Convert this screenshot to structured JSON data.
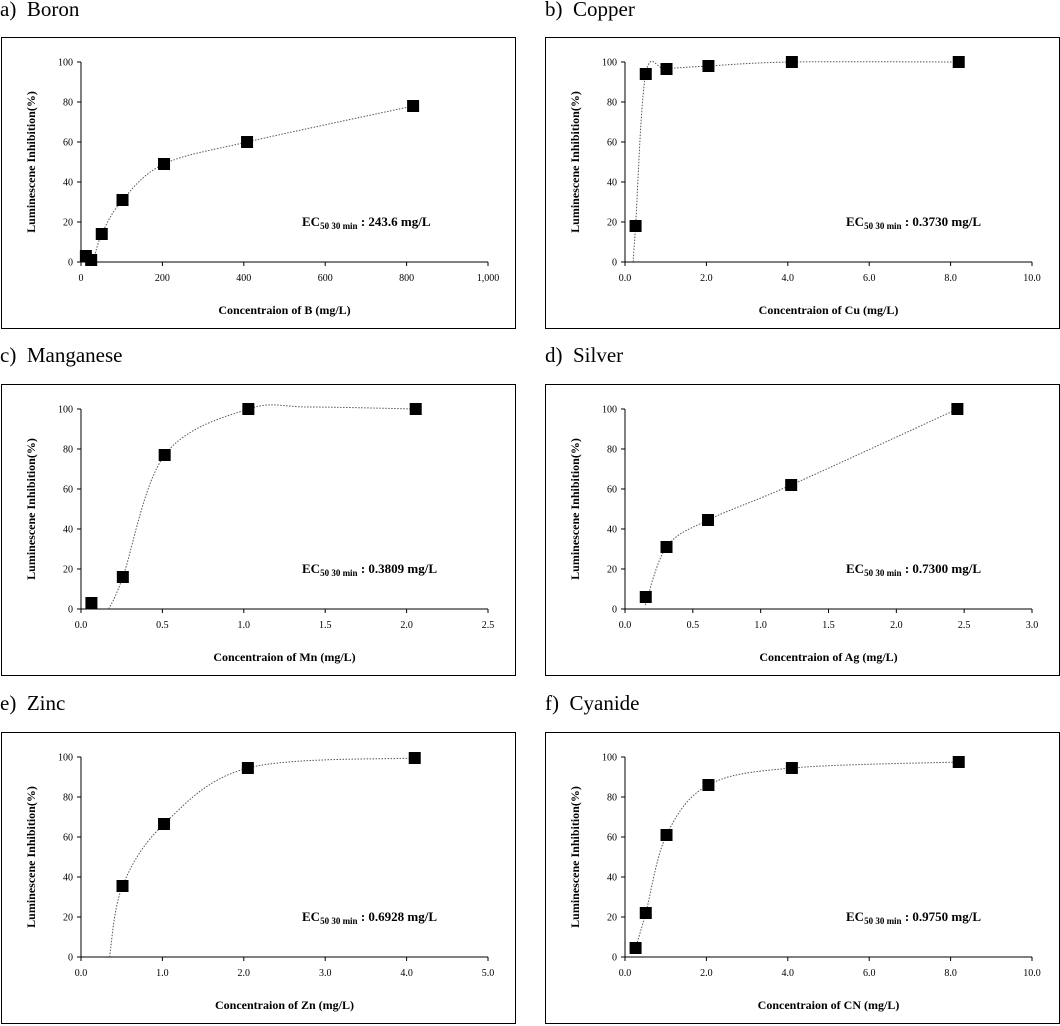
{
  "chart_data": [
    {
      "type": "scatter",
      "panel": "a)",
      "title": "Boron",
      "xlabel": "Concentraion of B (mg/L)",
      "ylabel": "Luminescene Inhibition(%)",
      "xlim": [
        0,
        1000
      ],
      "ylim": [
        0,
        100
      ],
      "xticks": [
        0,
        200,
        400,
        600,
        800,
        1000
      ],
      "xtick_labels": [
        "0",
        "200",
        "400",
        "600",
        "800",
        "1,000"
      ],
      "yticks": [
        0,
        20,
        40,
        60,
        80,
        100
      ],
      "ytick_labels": [
        "0",
        "20",
        "40",
        "60",
        "80",
        "100"
      ],
      "x": [
        12,
        25,
        51,
        102,
        204,
        408,
        816
      ],
      "y": [
        3,
        1,
        14,
        31,
        49,
        60,
        78
      ],
      "fit_curve": [
        [
          30,
          0
        ],
        [
          51,
          14
        ],
        [
          102,
          31
        ],
        [
          204,
          49
        ],
        [
          408,
          60
        ],
        [
          816,
          78
        ]
      ],
      "annotation": {
        "main": "EC",
        "sub": "50 30 min",
        "value": ": 243.6 mg/L"
      }
    },
    {
      "type": "scatter",
      "panel": "b)",
      "title": "Copper",
      "xlabel": "Concentraion of Cu (mg/L)",
      "ylabel": "Luminescene Inhibition(%)",
      "xlim": [
        0,
        10
      ],
      "ylim": [
        0,
        100
      ],
      "xticks": [
        0,
        2,
        4,
        6,
        8,
        10
      ],
      "xtick_labels": [
        "0.0",
        "2.0",
        "4.0",
        "6.0",
        "8.0",
        "10.0"
      ],
      "yticks": [
        0,
        20,
        40,
        60,
        80,
        100
      ],
      "ytick_labels": [
        "0",
        "20",
        "40",
        "60",
        "80",
        "100"
      ],
      "x": [
        0.26,
        0.51,
        1.02,
        2.05,
        4.1,
        8.2
      ],
      "y": [
        18,
        94,
        96.5,
        98,
        100,
        100
      ],
      "fit_curve": [
        [
          0.2,
          0
        ],
        [
          0.26,
          18
        ],
        [
          0.51,
          94
        ],
        [
          1.02,
          96.5
        ],
        [
          2.05,
          98
        ],
        [
          4.1,
          100
        ],
        [
          8.2,
          100
        ]
      ],
      "annotation": {
        "main": "EC",
        "sub": "50 30 min",
        "value": ": 0.3730 mg/L"
      }
    },
    {
      "type": "scatter",
      "panel": "c)",
      "title": "Manganese",
      "xlabel": "Concentraion of Mn (mg/L)",
      "ylabel": "Luminescene Inhibition(%)",
      "xlim": [
        0,
        2.5
      ],
      "ylim": [
        0,
        100
      ],
      "xticks": [
        0,
        0.5,
        1.0,
        1.5,
        2.0,
        2.5
      ],
      "xtick_labels": [
        "0.0",
        "0.5",
        "1.0",
        "1.5",
        "2.0",
        "2.5"
      ],
      "yticks": [
        0,
        20,
        40,
        60,
        80,
        100
      ],
      "ytick_labels": [
        "0",
        "20",
        "40",
        "60",
        "80",
        "100"
      ],
      "x": [
        0.064,
        0.257,
        0.514,
        1.028,
        2.056
      ],
      "y": [
        3,
        16,
        77,
        100,
        100
      ],
      "fit_curve": [
        [
          0.17,
          0
        ],
        [
          0.257,
          16
        ],
        [
          0.514,
          77
        ],
        [
          1.028,
          100
        ],
        [
          1.4,
          101
        ],
        [
          2.056,
          100
        ]
      ],
      "annotation": {
        "main": "EC",
        "sub": "50 30 min",
        "value": ": 0.3809 mg/L"
      }
    },
    {
      "type": "scatter",
      "panel": "d)",
      "title": "Silver",
      "xlabel": "Concentraion of Ag (mg/L)",
      "ylabel": "Luminescene Inhibition(%)",
      "xlim": [
        0,
        3.0
      ],
      "ylim": [
        0,
        100
      ],
      "xticks": [
        0,
        0.5,
        1.0,
        1.5,
        2.0,
        2.5,
        3.0
      ],
      "xtick_labels": [
        "0.0",
        "0.5",
        "1.0",
        "1.5",
        "2.0",
        "2.5",
        "3.0"
      ],
      "yticks": [
        0,
        20,
        40,
        60,
        80,
        100
      ],
      "ytick_labels": [
        "0",
        "20",
        "40",
        "60",
        "80",
        "100"
      ],
      "x": [
        0.153,
        0.306,
        0.612,
        1.225,
        2.45
      ],
      "y": [
        6,
        31,
        44.5,
        62,
        100
      ],
      "fit_curve": [
        [
          0.15,
          2
        ],
        [
          0.306,
          31
        ],
        [
          0.612,
          44.5
        ],
        [
          1.225,
          62
        ],
        [
          2.45,
          100
        ]
      ],
      "annotation": {
        "main": "EC",
        "sub": "50 30 min",
        "value": ": 0.7300 mg/L"
      }
    },
    {
      "type": "scatter",
      "panel": "e)",
      "title": "Zinc",
      "xlabel": "Concentraion of Zn (mg/L)",
      "ylabel": "Luminescene Inhibition(%)",
      "xlim": [
        0,
        5.0
      ],
      "ylim": [
        0,
        100
      ],
      "xticks": [
        0,
        1,
        2,
        3,
        4,
        5
      ],
      "xtick_labels": [
        "0.0",
        "1.0",
        "2.0",
        "3.0",
        "4.0",
        "5.0"
      ],
      "yticks": [
        0,
        20,
        40,
        60,
        80,
        100
      ],
      "ytick_labels": [
        "0",
        "20",
        "40",
        "60",
        "80",
        "100"
      ],
      "x": [
        0.51,
        1.02,
        2.05,
        4.1
      ],
      "y": [
        35.5,
        66.5,
        94.5,
        99.5
      ],
      "fit_curve": [
        [
          0.35,
          0
        ],
        [
          0.51,
          35.5
        ],
        [
          1.02,
          66.5
        ],
        [
          2.05,
          94.5
        ],
        [
          4.1,
          99.5
        ]
      ],
      "annotation": {
        "main": "EC",
        "sub": "50 30 min",
        "value": ": 0.6928 mg/L"
      }
    },
    {
      "type": "scatter",
      "panel": "f)",
      "title": "Cyanide",
      "xlabel": "Concentraion of CN (mg/L)",
      "ylabel": "Luminescene Inhibition(%)",
      "xlim": [
        0,
        10
      ],
      "ylim": [
        0,
        100
      ],
      "xticks": [
        0,
        2,
        4,
        6,
        8,
        10
      ],
      "xtick_labels": [
        "0.0",
        "2.0",
        "4.0",
        "6.0",
        "8.0",
        "10.0"
      ],
      "yticks": [
        0,
        20,
        40,
        60,
        80,
        100
      ],
      "ytick_labels": [
        "0",
        "20",
        "40",
        "60",
        "80",
        "100"
      ],
      "x": [
        0.26,
        0.51,
        1.02,
        2.05,
        4.1,
        8.2
      ],
      "y": [
        4.5,
        22,
        61,
        86,
        94.5,
        97.5
      ],
      "fit_curve": [
        [
          0.26,
          4.5
        ],
        [
          0.51,
          22
        ],
        [
          1.02,
          61
        ],
        [
          2.05,
          86
        ],
        [
          4.1,
          94.5
        ],
        [
          8.2,
          97.5
        ]
      ],
      "annotation": {
        "main": "EC",
        "sub": "50 30 min",
        "value": ": 0.9750 mg/L"
      }
    }
  ]
}
